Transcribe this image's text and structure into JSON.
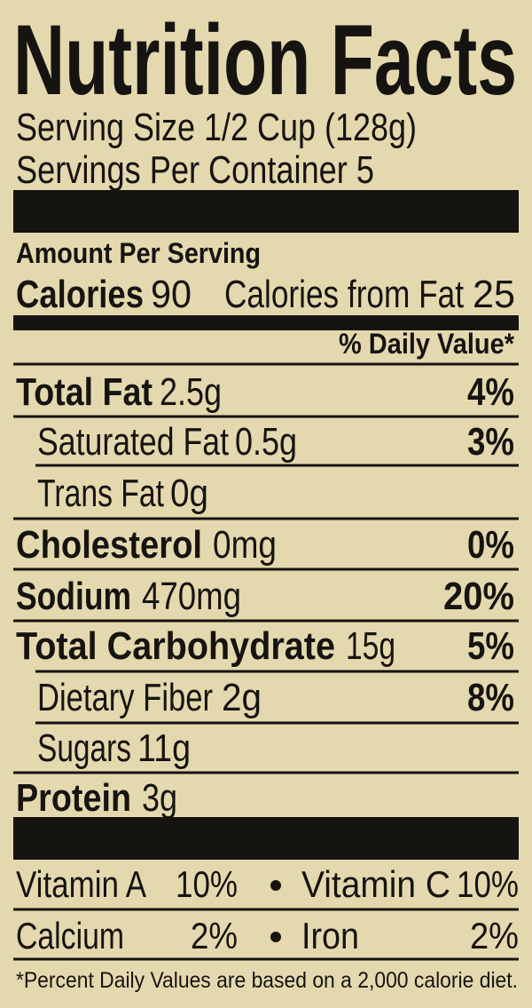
{
  "header": {
    "title": "Nutrition Facts",
    "serving_size": "Serving Size 1/2 Cup (128g)",
    "servings_per_container": "Servings Per Container 5"
  },
  "amount_per_serving": "Amount Per Serving",
  "calories": {
    "label": "Calories",
    "value": "90",
    "from_fat_label": "Calories from Fat",
    "from_fat_value": "25"
  },
  "daily_value_header": "% Daily Value*",
  "nutrients": [
    {
      "name": "Total Fat",
      "amount": "2.5g",
      "daily_value": "4%"
    },
    {
      "name": "Saturated Fat",
      "amount": "0.5g",
      "daily_value": "3%"
    },
    {
      "name": "Trans Fat",
      "amount": "0g"
    },
    {
      "name": "Cholesterol",
      "amount": "0mg",
      "daily_value": "0%"
    },
    {
      "name": "Sodium",
      "amount": "470mg",
      "daily_value": "20%"
    },
    {
      "name": "Total Carbohydrate",
      "amount": "15g",
      "daily_value": "5%"
    },
    {
      "name": "Dietary Fiber",
      "amount": "2g",
      "daily_value": "8%"
    },
    {
      "name": "Sugars",
      "amount": "11g"
    },
    {
      "name": "Protein",
      "amount": "3g"
    }
  ],
  "vitamins": [
    {
      "name": "Vitamin A",
      "value": "10%"
    },
    {
      "name": "Vitamin C",
      "value": "10%"
    },
    {
      "name": "Calcium",
      "value": "2%"
    },
    {
      "name": "Iron",
      "value": "2%"
    }
  ],
  "footnote": "*Percent Daily Values are based on a 2,000 calorie diet."
}
